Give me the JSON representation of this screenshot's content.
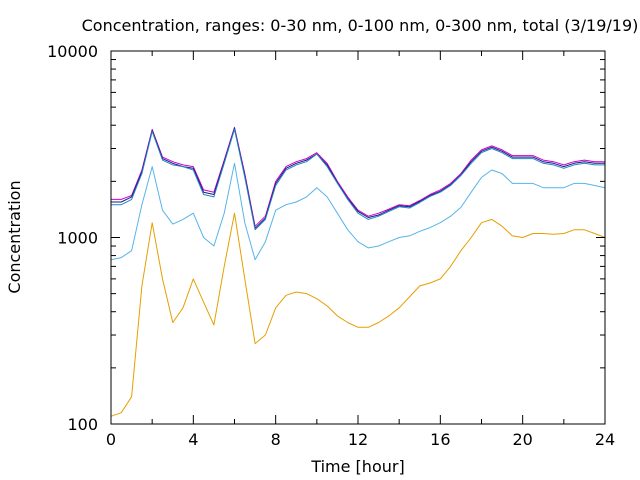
{
  "chart_data": {
    "type": "line",
    "title": "Concentration, ranges: 0-30 nm, 0-100 nm, 0-300 nm, total (3/19/19)",
    "xlabel": "Time [hour]",
    "ylabel": "Concentration",
    "xlim": [
      0,
      24
    ],
    "ylim": [
      100,
      10000
    ],
    "yscale": "log",
    "grid": false,
    "x_ticks": [
      "0",
      "4",
      "8",
      "12",
      "16",
      "20",
      "24"
    ],
    "y_ticks": [
      "100",
      "1000",
      "10000"
    ],
    "x": [
      0,
      0.5,
      1,
      1.5,
      2,
      2.5,
      3,
      3.5,
      4,
      4.5,
      5,
      5.5,
      6,
      6.5,
      7,
      7.5,
      8,
      8.5,
      9,
      9.5,
      10,
      10.5,
      11,
      11.5,
      12,
      12.5,
      13,
      13.5,
      14,
      14.5,
      15,
      15.5,
      16,
      16.5,
      17,
      17.5,
      18,
      18.5,
      19,
      19.5,
      20,
      20.5,
      21,
      21.5,
      22,
      22.5,
      23,
      23.5,
      24
    ],
    "series": [
      {
        "color": "#cc00cc",
        "values": [
          1600,
          1600,
          1680,
          2300,
          3800,
          2700,
          2550,
          2450,
          2400,
          1800,
          1750,
          2600,
          3900,
          2200,
          1150,
          1300,
          2000,
          2400,
          2550,
          2650,
          2850,
          2500,
          2000,
          1650,
          1400,
          1300,
          1350,
          1420,
          1500,
          1480,
          1580,
          1700,
          1800,
          1950,
          2200,
          2600,
          2950,
          3100,
          2950,
          2750,
          2750,
          2750,
          2600,
          2550,
          2450,
          2550,
          2600,
          2550,
          2550
        ]
      },
      {
        "color": "#1a1a8c",
        "values": [
          1550,
          1550,
          1650,
          2250,
          3750,
          2650,
          2500,
          2400,
          2350,
          1750,
          1700,
          2550,
          3850,
          2150,
          1120,
          1270,
          1950,
          2350,
          2500,
          2600,
          2800,
          2450,
          1970,
          1620,
          1380,
          1280,
          1320,
          1400,
          1480,
          1460,
          1560,
          1680,
          1770,
          1920,
          2170,
          2550,
          2900,
          3050,
          2900,
          2700,
          2700,
          2700,
          2550,
          2500,
          2400,
          2500,
          2550,
          2500,
          2500
        ]
      },
      {
        "color": "#2288bb",
        "values": [
          1500,
          1500,
          1600,
          2200,
          3700,
          2600,
          2450,
          2400,
          2300,
          1700,
          1650,
          2500,
          3800,
          2100,
          1100,
          1250,
          1900,
          2300,
          2450,
          2550,
          2800,
          2400,
          1950,
          1600,
          1350,
          1250,
          1300,
          1380,
          1460,
          1440,
          1540,
          1660,
          1750,
          1900,
          2150,
          2500,
          2850,
          3000,
          2850,
          2650,
          2650,
          2650,
          2500,
          2450,
          2350,
          2450,
          2500,
          2450,
          2450
        ]
      },
      {
        "color": "#56b4e9",
        "values": [
          760,
          780,
          850,
          1500,
          2400,
          1400,
          1180,
          1250,
          1350,
          1000,
          900,
          1350,
          2500,
          1200,
          760,
          950,
          1400,
          1500,
          1550,
          1650,
          1850,
          1650,
          1350,
          1100,
          950,
          880,
          900,
          950,
          1000,
          1020,
          1080,
          1130,
          1200,
          1300,
          1450,
          1750,
          2100,
          2300,
          2200,
          1950,
          1950,
          1950,
          1850,
          1850,
          1850,
          1950,
          1950,
          1900,
          1850
        ]
      },
      {
        "color": "#e69f00",
        "values": [
          110,
          115,
          140,
          550,
          1200,
          600,
          350,
          420,
          600,
          450,
          340,
          700,
          1350,
          600,
          270,
          300,
          420,
          490,
          510,
          500,
          470,
          430,
          380,
          350,
          330,
          330,
          350,
          380,
          420,
          480,
          550,
          570,
          600,
          700,
          850,
          1000,
          1200,
          1250,
          1150,
          1020,
          1000,
          1050,
          1050,
          1040,
          1050,
          1100,
          1100,
          1050,
          1000
        ]
      }
    ]
  }
}
